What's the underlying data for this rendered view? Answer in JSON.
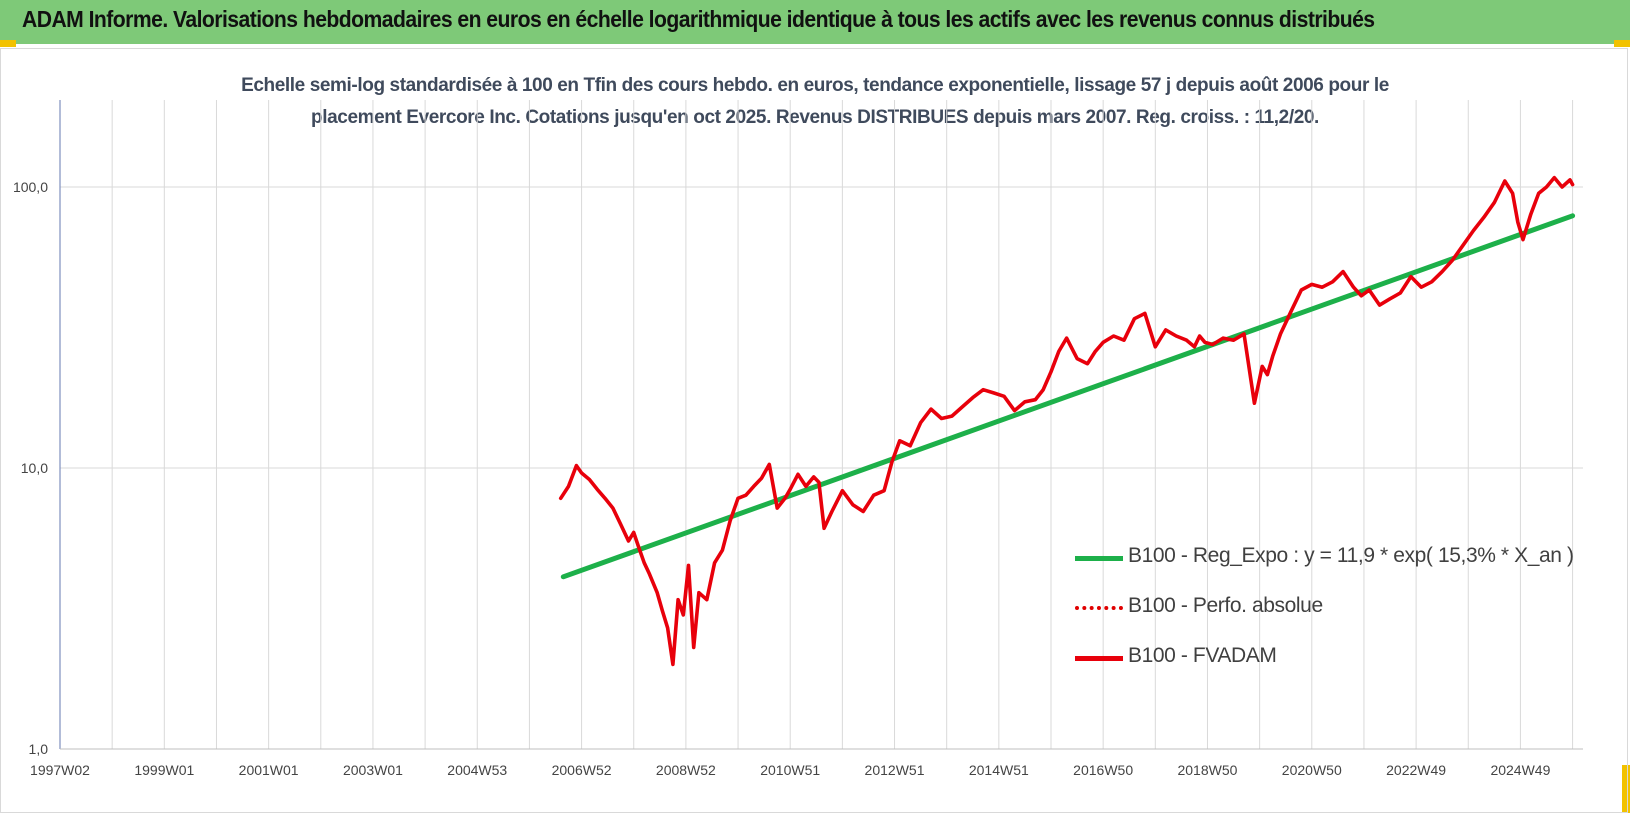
{
  "header": {
    "title": "ADAM Informe. Valorisations hebdomadaires en euros en échelle logarithmique identique à tous les actifs avec les revenus connus distribués"
  },
  "chart_data": {
    "type": "line",
    "title_line1": "Echelle semi-log standardisée à 100 en Tfin des cours hebdo. en euros, tendance exponentielle, lissage 57 j depuis août 2006 pour le",
    "title_line2": "placement Evercore Inc. Cotations jusqu'en oct 2025. Revenus DISTRIBUES depuis mars 2007. Reg. croiss. : 11,2/20.",
    "y_scale": "log",
    "ylim": [
      1,
      200
    ],
    "y_ticks": [
      {
        "value": 1,
        "label": "1,0"
      },
      {
        "value": 10,
        "label": "10,0"
      },
      {
        "value": 100,
        "label": "100,0"
      }
    ],
    "x_range": [
      1997.0,
      2026.2
    ],
    "x_ticks": [
      {
        "value": 1997.0,
        "label": "1997W02"
      },
      {
        "value": 1999.0,
        "label": "1999W01"
      },
      {
        "value": 2001.0,
        "label": "2001W01"
      },
      {
        "value": 2003.0,
        "label": "2003W01"
      },
      {
        "value": 2005.0,
        "label": "2004W53"
      },
      {
        "value": 2007.0,
        "label": "2006W52"
      },
      {
        "value": 2009.0,
        "label": "2008W52"
      },
      {
        "value": 2011.0,
        "label": "2010W51"
      },
      {
        "value": 2013.0,
        "label": "2012W51"
      },
      {
        "value": 2015.0,
        "label": "2014W51"
      },
      {
        "value": 2017.0,
        "label": "2016W50"
      },
      {
        "value": 2019.0,
        "label": "2018W50"
      },
      {
        "value": 2021.0,
        "label": "2020W50"
      },
      {
        "value": 2023.0,
        "label": "2022W49"
      },
      {
        "value": 2025.0,
        "label": "2024W49"
      }
    ],
    "grid": true,
    "legend_position": "bottom-right",
    "series": [
      {
        "name": "B100 - Reg_Expo : y = 11,9 * exp( 15,3% *  X_an )",
        "color": "#1db04a",
        "style": "solid",
        "x": [
          2006.65,
          2026.0
        ],
        "y": [
          4.1,
          79
        ]
      },
      {
        "name": "B100 - Perfo. absolue",
        "color": "#e00000",
        "style": "dotted",
        "x": [],
        "y": []
      },
      {
        "name": "B100 - FVADAM",
        "color": "#e8000b",
        "style": "solid",
        "x": [
          2006.6,
          2006.75,
          2006.9,
          2007.0,
          2007.15,
          2007.3,
          2007.45,
          2007.6,
          2007.75,
          2007.9,
          2008.0,
          2008.1,
          2008.2,
          2008.3,
          2008.45,
          2008.55,
          2008.65,
          2008.75,
          2008.85,
          2008.95,
          2009.05,
          2009.15,
          2009.25,
          2009.4,
          2009.55,
          2009.7,
          2009.85,
          2010.0,
          2010.15,
          2010.3,
          2010.45,
          2010.6,
          2010.75,
          2010.9,
          2011.0,
          2011.15,
          2011.3,
          2011.45,
          2011.55,
          2011.65,
          2011.8,
          2012.0,
          2012.2,
          2012.4,
          2012.6,
          2012.8,
          2012.95,
          2013.1,
          2013.3,
          2013.5,
          2013.7,
          2013.9,
          2014.1,
          2014.3,
          2014.5,
          2014.7,
          2014.9,
          2015.1,
          2015.3,
          2015.5,
          2015.7,
          2015.85,
          2016.0,
          2016.15,
          2016.3,
          2016.5,
          2016.7,
          2016.85,
          2017.0,
          2017.2,
          2017.4,
          2017.6,
          2017.8,
          2018.0,
          2018.2,
          2018.4,
          2018.6,
          2018.75,
          2018.85,
          2018.95,
          2019.1,
          2019.3,
          2019.5,
          2019.7,
          2019.9,
          2020.05,
          2020.15,
          2020.25,
          2020.4,
          2020.6,
          2020.8,
          2021.0,
          2021.2,
          2021.4,
          2021.6,
          2021.8,
          2021.95,
          2022.1,
          2022.3,
          2022.5,
          2022.7,
          2022.9,
          2023.1,
          2023.3,
          2023.5,
          2023.7,
          2023.9,
          2024.1,
          2024.3,
          2024.5,
          2024.7,
          2024.85,
          2024.95,
          2025.05,
          2025.2,
          2025.35,
          2025.5,
          2025.65,
          2025.8,
          2025.95,
          2026.0
        ],
        "y": [
          7.8,
          8.6,
          10.2,
          9.6,
          9.1,
          8.4,
          7.8,
          7.2,
          6.3,
          5.5,
          5.9,
          5.2,
          4.6,
          4.2,
          3.6,
          3.1,
          2.7,
          2.0,
          3.4,
          3.0,
          4.5,
          2.3,
          3.6,
          3.4,
          4.6,
          5.1,
          6.5,
          7.8,
          8.0,
          8.6,
          9.2,
          10.3,
          7.2,
          7.8,
          8.4,
          9.5,
          8.6,
          9.3,
          8.9,
          6.1,
          7.0,
          8.3,
          7.4,
          7.0,
          8.0,
          8.3,
          10.5,
          12.5,
          12.0,
          14.5,
          16.2,
          15.0,
          15.3,
          16.5,
          17.8,
          19.0,
          18.5,
          18.0,
          16.0,
          17.2,
          17.5,
          19.0,
          22.0,
          26.0,
          29.0,
          24.5,
          23.5,
          26.0,
          28.0,
          29.5,
          28.5,
          34.0,
          35.5,
          27.0,
          31.0,
          29.5,
          28.5,
          27.0,
          29.5,
          28.0,
          27.5,
          29.0,
          28.5,
          30.0,
          17.0,
          23.0,
          21.5,
          25.0,
          30.0,
          36.0,
          43.0,
          45.0,
          44.0,
          46.0,
          50.0,
          44.0,
          41.0,
          43.0,
          38.0,
          40.0,
          42.0,
          48.0,
          44.0,
          46.0,
          50.0,
          55.0,
          62.0,
          70.0,
          78.0,
          88.0,
          105.0,
          95.0,
          75.0,
          65.0,
          80.0,
          95.0,
          100.0,
          108.0,
          100.0,
          106.0,
          102.0
        ]
      }
    ]
  }
}
